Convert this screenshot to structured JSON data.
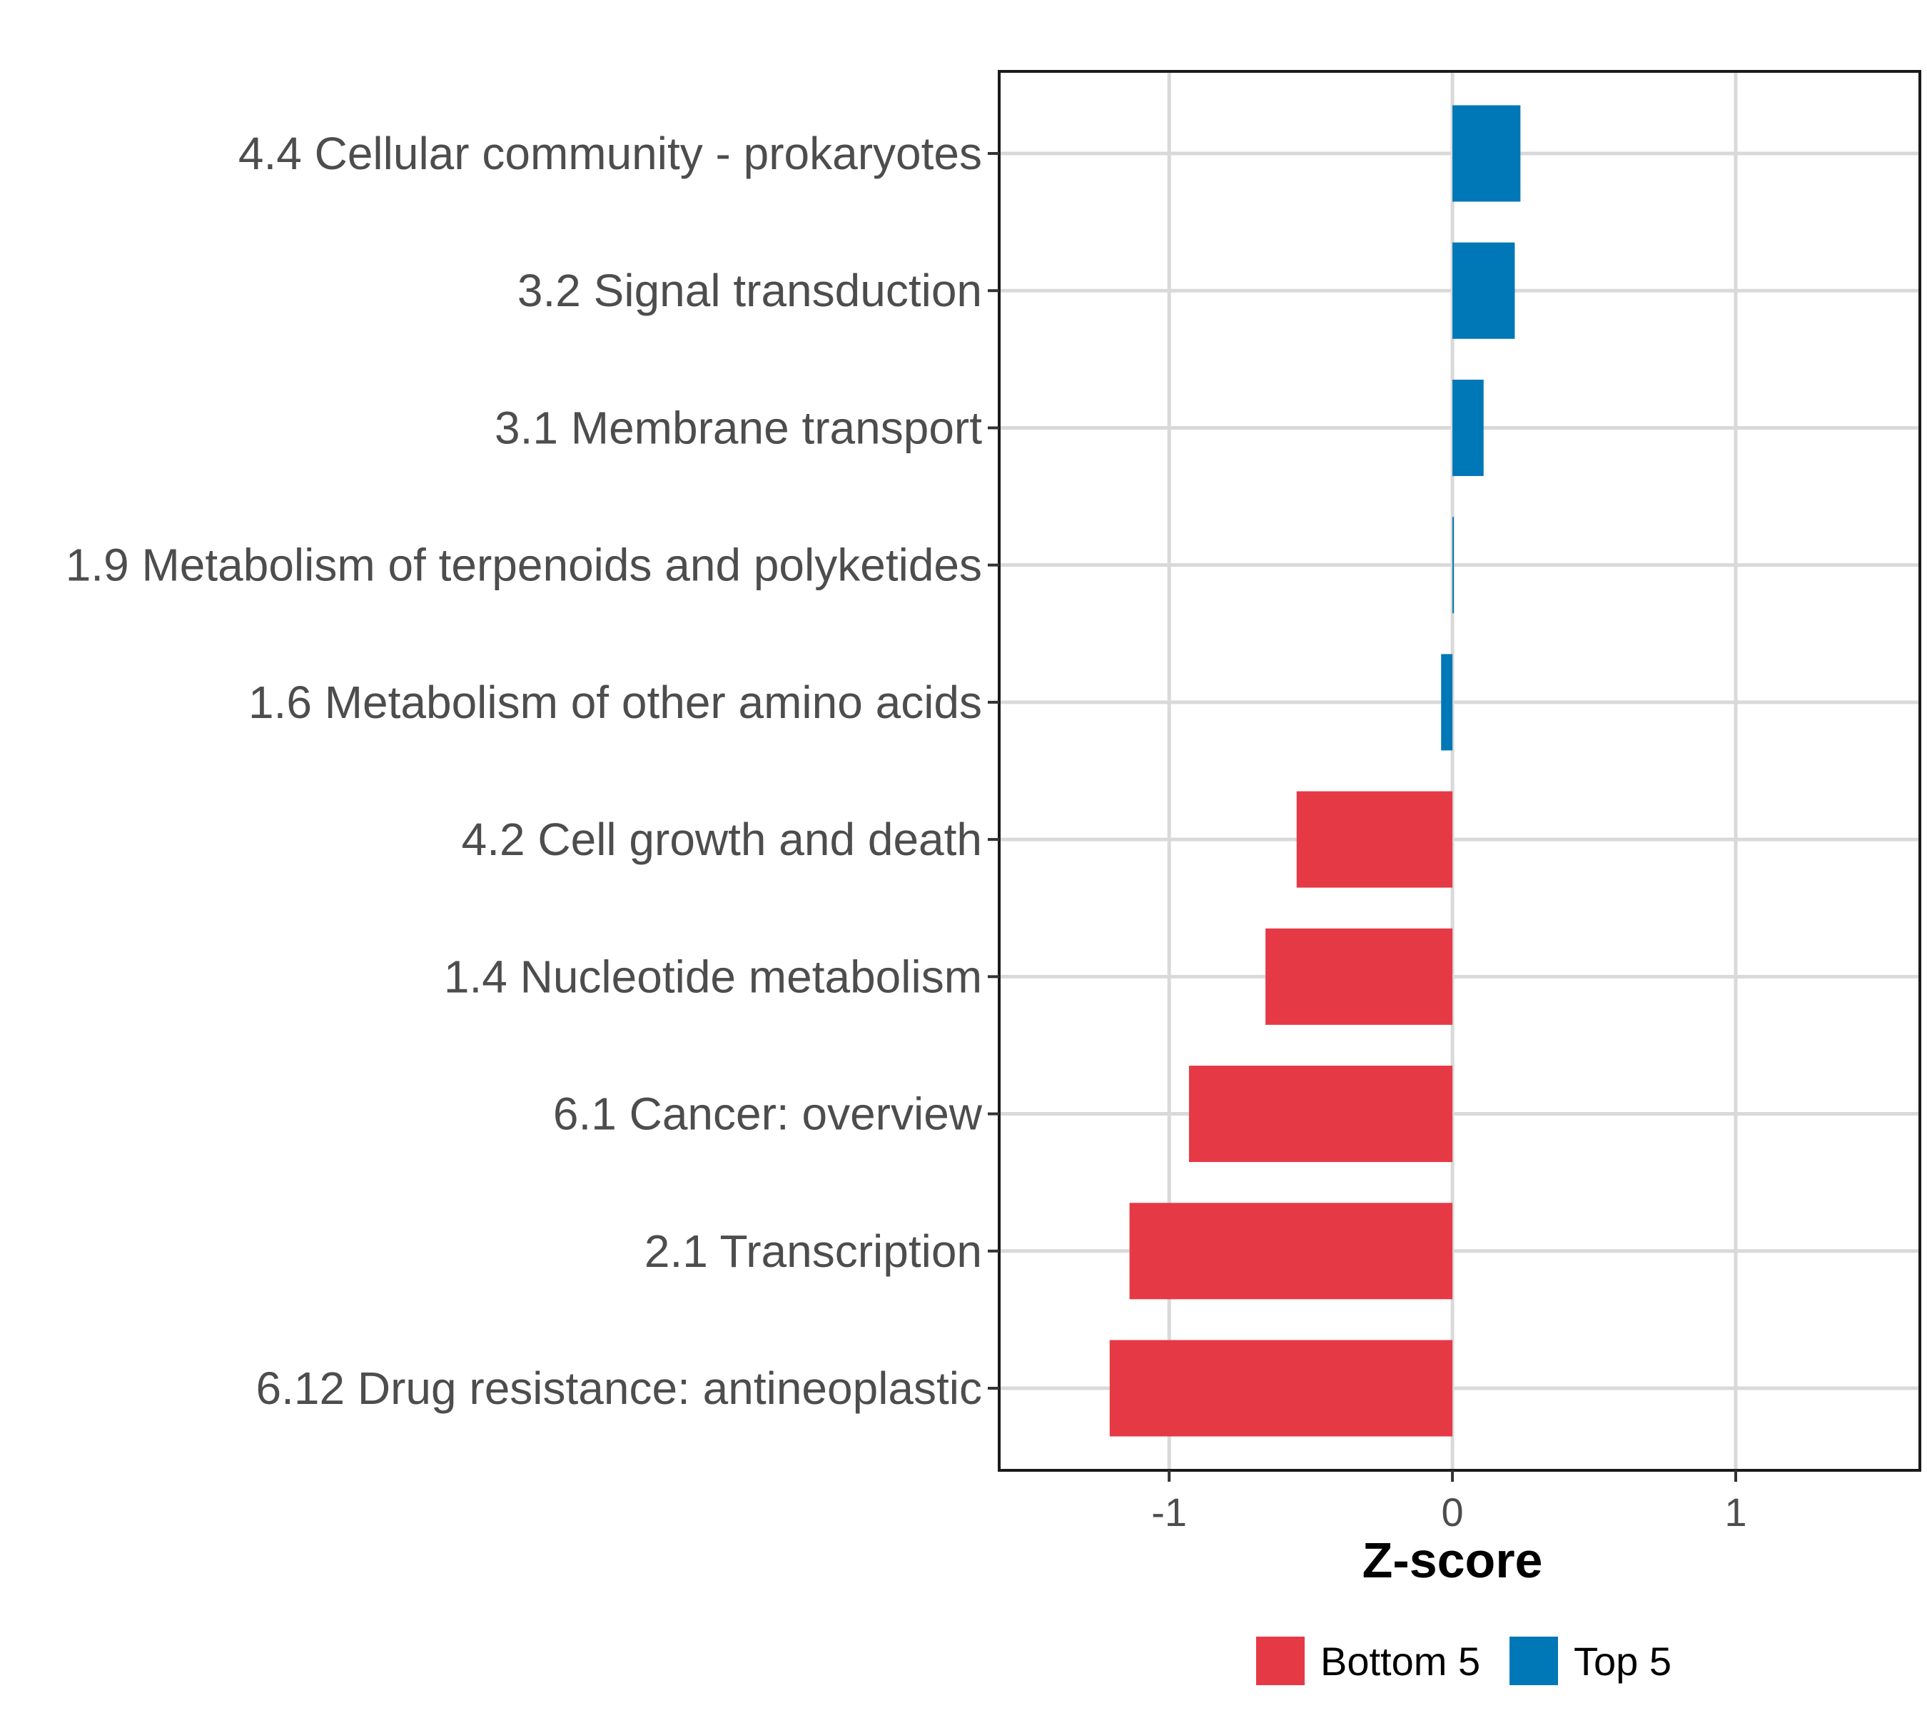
{
  "chart_data": {
    "type": "bar",
    "orientation": "horizontal",
    "xlabel": "Z-score",
    "xlim": [
      -1.6,
      1.65
    ],
    "xticks": [
      -1,
      0,
      1
    ],
    "xtick_labels": [
      "-1",
      "0",
      "1"
    ],
    "grid": true,
    "legend_position": "bottom",
    "legend": [
      {
        "name": "Bottom 5",
        "color": "#E63946"
      },
      {
        "name": "Top 5",
        "color": "#0077B6"
      }
    ],
    "categories": [
      "4.4 Cellular community - prokaryotes",
      "3.2 Signal transduction",
      "3.1 Membrane transport",
      "1.9 Metabolism of terpenoids and polyketides",
      "1.6 Metabolism of other amino acids",
      "4.2 Cell growth and death",
      "1.4 Nucleotide metabolism",
      "6.1 Cancer: overview",
      "2.1 Transcription",
      "6.12 Drug resistance: antineoplastic"
    ],
    "values": [
      0.24,
      0.22,
      0.11,
      0.003,
      -0.04,
      -0.55,
      -0.66,
      -0.93,
      -1.14,
      -1.21
    ],
    "groups": [
      "Top 5",
      "Top 5",
      "Top 5",
      "Top 5",
      "Top 5",
      "Bottom 5",
      "Bottom 5",
      "Bottom 5",
      "Bottom 5",
      "Bottom 5"
    ]
  }
}
